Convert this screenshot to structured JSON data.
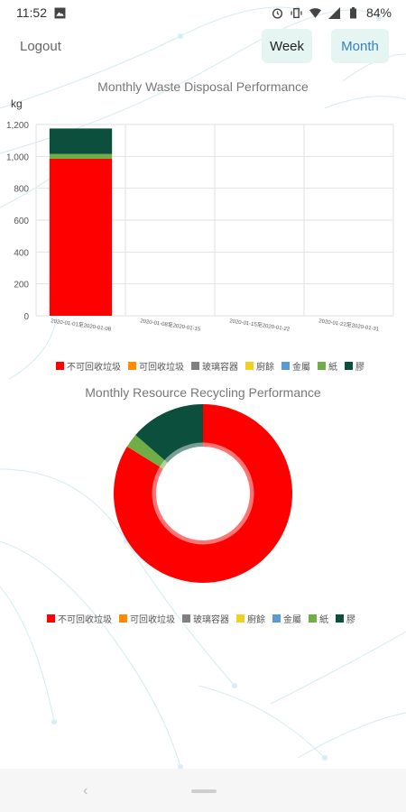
{
  "status": {
    "time": "11:52",
    "battery": "84%"
  },
  "header": {
    "logout_label": "Logout",
    "week_label": "Week",
    "month_label": "Month"
  },
  "legend": [
    {
      "label": "不可回收垃圾",
      "color": "#ff0000"
    },
    {
      "label": "可回收垃圾",
      "color": "#ff8c00"
    },
    {
      "label": "玻璃容器",
      "color": "#808080"
    },
    {
      "label": "廚餘",
      "color": "#f0d020"
    },
    {
      "label": "金屬",
      "color": "#5b9bd5"
    },
    {
      "label": "紙",
      "color": "#70ad47"
    },
    {
      "label": "膠",
      "color": "#0b4f3c"
    }
  ],
  "chart_data": [
    {
      "type": "bar",
      "stacked": true,
      "title": "Monthly Waste Disposal Performance",
      "ylabel": "kg",
      "ylim": [
        0,
        1200
      ],
      "yticks": [
        0,
        200,
        400,
        600,
        800,
        1000,
        1200
      ],
      "ytick_labels": [
        "0",
        "200",
        "400",
        "600",
        "800",
        "1,000",
        "1,200"
      ],
      "categories": [
        "2020-01-01至2020-01-08",
        "2020-01-08至2020-01-15",
        "2020-01-15至2020-01-22",
        "2020-01-22至2020-01-31"
      ],
      "series": [
        {
          "name": "不可回收垃圾",
          "color": "#ff0000",
          "values": [
            985,
            0,
            0,
            0
          ]
        },
        {
          "name": "可回收垃圾",
          "color": "#ff8c00",
          "values": [
            0,
            0,
            0,
            0
          ]
        },
        {
          "name": "玻璃容器",
          "color": "#808080",
          "values": [
            0,
            0,
            0,
            0
          ]
        },
        {
          "name": "廚餘",
          "color": "#f0d020",
          "values": [
            0,
            0,
            0,
            0
          ]
        },
        {
          "name": "金屬",
          "color": "#5b9bd5",
          "values": [
            0,
            0,
            0,
            0
          ]
        },
        {
          "name": "紙",
          "color": "#70ad47",
          "values": [
            30,
            0,
            0,
            0
          ]
        },
        {
          "name": "膠",
          "color": "#0b4f3c",
          "values": [
            160,
            0,
            0,
            0
          ]
        }
      ]
    },
    {
      "type": "pie",
      "title": "Monthly Resource Recycling Performance",
      "labels": [
        "不可回收垃圾",
        "可回收垃圾",
        "玻璃容器",
        "廚餘",
        "金屬",
        "紙",
        "膠"
      ],
      "colors": [
        "#ff0000",
        "#ff8c00",
        "#808080",
        "#f0d020",
        "#5b9bd5",
        "#70ad47",
        "#0b4f3c"
      ],
      "values": [
        985,
        0,
        0,
        0,
        0,
        30,
        160
      ]
    }
  ]
}
